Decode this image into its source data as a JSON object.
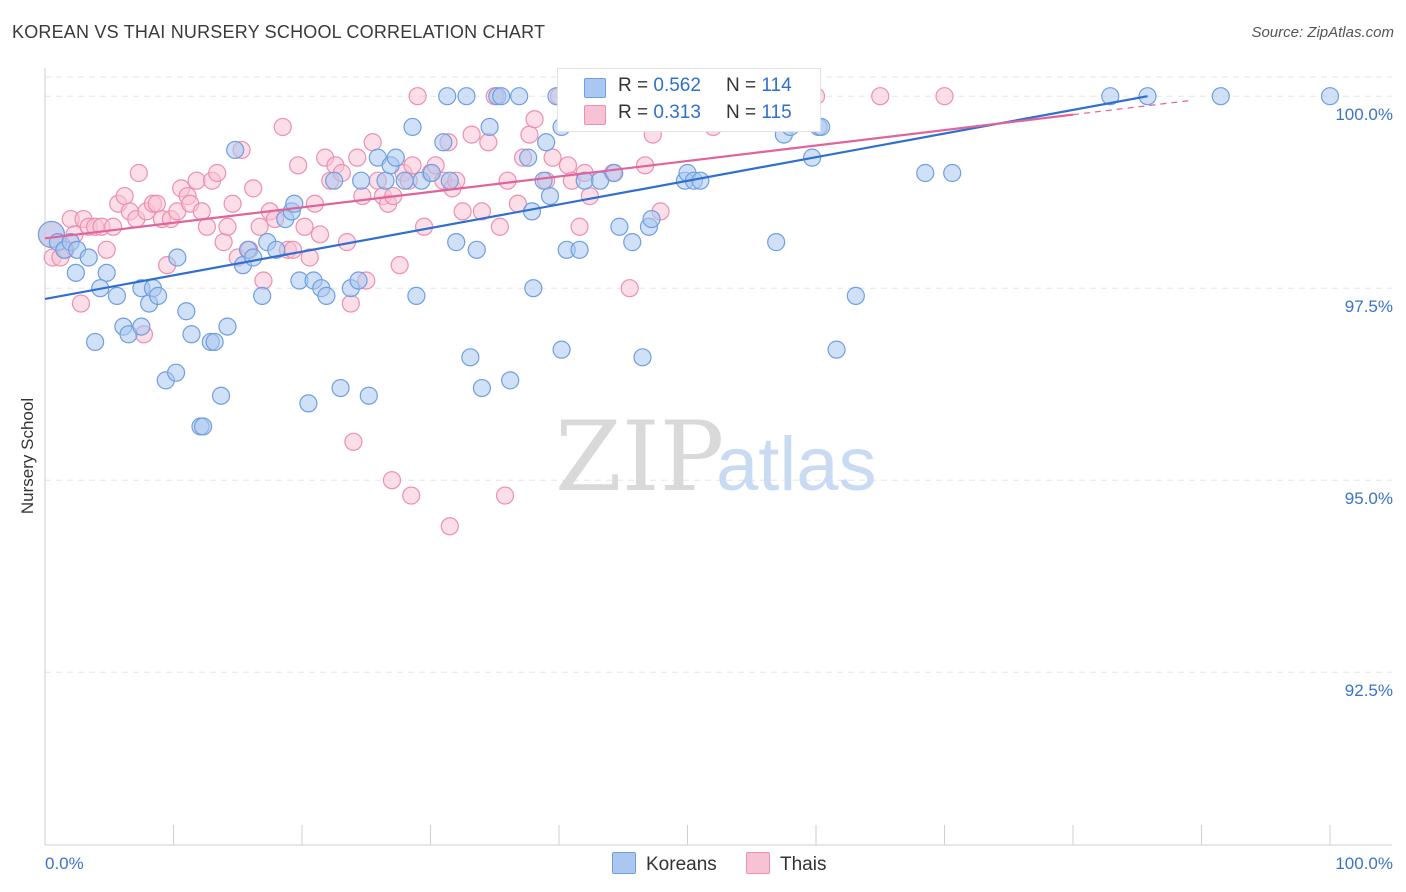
{
  "header": {
    "title": "KOREAN VS THAI NURSERY SCHOOL CORRELATION CHART",
    "source": "Source: ZipAtlas.com"
  },
  "watermark": {
    "zip": "ZIP",
    "atlas": "atlas"
  },
  "legend": {
    "rows": [
      {
        "r_label": "R =",
        "r_value": "0.562",
        "n_label": "N =",
        "n_value": "114",
        "color": "#7aaae6"
      },
      {
        "r_label": "R =",
        "r_value": "0.313",
        "n_label": "N =",
        "n_value": "115",
        "color": "#f4a7c0"
      }
    ]
  },
  "bottom_legend": [
    "Koreans",
    "Thais"
  ],
  "colors": {
    "blue_fill": "#a9c7f0",
    "blue_stroke": "#6f9fe0",
    "blue_line": "#2f6fd0",
    "pink_fill": "#f7c2d3",
    "pink_stroke": "#ee8fb0",
    "pink_line": "#e0649a",
    "tick_text": "#3b73c9"
  },
  "chart_data": {
    "type": "scatter",
    "title": "KOREAN VS THAI NURSERY SCHOOL CORRELATION CHART",
    "xlabel": "",
    "ylabel": "Nursery School",
    "xlim": [
      0,
      100
    ],
    "ylim": [
      90.25,
      100.25
    ],
    "x_tick_labels": [
      "0.0%",
      "100.0%"
    ],
    "y_ticks": [
      92.5,
      95.0,
      97.5,
      100.0
    ],
    "y_tick_labels": [
      "92.5%",
      "95.0%",
      "97.5%",
      "100.0%"
    ],
    "grid": true,
    "series": [
      {
        "name": "Koreans",
        "r": 0.562,
        "n": 114,
        "trend": {
          "x": [
            0,
            85.8
          ],
          "y": [
            97.36,
            100.0
          ]
        },
        "points": [
          [
            0.5,
            98.2
          ],
          [
            1.0,
            98.1
          ],
          [
            1.5,
            98.0
          ],
          [
            2.0,
            98.1
          ],
          [
            2.5,
            98.0
          ],
          [
            3.4,
            97.9
          ],
          [
            2.4,
            97.7
          ],
          [
            4.8,
            97.7
          ],
          [
            4.3,
            97.5
          ],
          [
            5.6,
            97.4
          ],
          [
            6.1,
            97.0
          ],
          [
            3.9,
            96.8
          ],
          [
            6.5,
            96.9
          ],
          [
            7.5,
            97.5
          ],
          [
            7.5,
            97.0
          ],
          [
            8.1,
            97.3
          ],
          [
            8.4,
            97.5
          ],
          [
            8.8,
            97.4
          ],
          [
            9.4,
            96.3
          ],
          [
            10.2,
            96.4
          ],
          [
            10.3,
            97.9
          ],
          [
            11.0,
            97.2
          ],
          [
            11.4,
            96.9
          ],
          [
            12.1,
            95.7
          ],
          [
            12.3,
            95.7
          ],
          [
            12.9,
            96.8
          ],
          [
            13.2,
            96.8
          ],
          [
            13.7,
            96.1
          ],
          [
            14.2,
            97.0
          ],
          [
            14.8,
            99.3
          ],
          [
            15.4,
            97.8
          ],
          [
            15.8,
            98.0
          ],
          [
            16.2,
            97.9
          ],
          [
            16.9,
            97.4
          ],
          [
            17.3,
            98.1
          ],
          [
            18.0,
            98.0
          ],
          [
            18.7,
            98.4
          ],
          [
            19.2,
            98.5
          ],
          [
            19.4,
            98.6
          ],
          [
            19.8,
            97.6
          ],
          [
            20.5,
            96.0
          ],
          [
            20.9,
            97.6
          ],
          [
            21.5,
            97.5
          ],
          [
            21.9,
            97.4
          ],
          [
            22.5,
            98.9
          ],
          [
            23.0,
            96.2
          ],
          [
            23.8,
            97.5
          ],
          [
            24.4,
            97.6
          ],
          [
            24.6,
            98.9
          ],
          [
            25.2,
            96.1
          ],
          [
            25.9,
            99.2
          ],
          [
            26.5,
            98.9
          ],
          [
            26.9,
            99.1
          ],
          [
            27.3,
            99.2
          ],
          [
            28.0,
            98.9
          ],
          [
            28.6,
            99.6
          ],
          [
            28.9,
            97.4
          ],
          [
            29.3,
            98.9
          ],
          [
            30.1,
            99.0
          ],
          [
            31.0,
            99.4
          ],
          [
            31.5,
            98.9
          ],
          [
            32.0,
            98.1
          ],
          [
            31.3,
            100.0
          ],
          [
            32.8,
            100.0
          ],
          [
            33.6,
            98.0
          ],
          [
            33.1,
            96.6
          ],
          [
            34.0,
            96.2
          ],
          [
            34.6,
            99.6
          ],
          [
            35.2,
            100.0
          ],
          [
            35.5,
            100.0
          ],
          [
            36.2,
            96.3
          ],
          [
            36.9,
            100.0
          ],
          [
            37.6,
            99.2
          ],
          [
            37.9,
            98.5
          ],
          [
            38.0,
            97.5
          ],
          [
            38.8,
            98.9
          ],
          [
            39.3,
            98.7
          ],
          [
            39.0,
            99.4
          ],
          [
            39.8,
            100.0
          ],
          [
            40.6,
            98.0
          ],
          [
            40.2,
            99.6
          ],
          [
            40.2,
            96.7
          ],
          [
            41.6,
            98.0
          ],
          [
            42.0,
            98.9
          ],
          [
            43.2,
            98.9
          ],
          [
            44.3,
            99.0
          ],
          [
            44.7,
            98.3
          ],
          [
            45.7,
            98.1
          ],
          [
            46.0,
            100.0
          ],
          [
            46.5,
            96.6
          ],
          [
            47.0,
            98.3
          ],
          [
            47.2,
            98.4
          ],
          [
            48.2,
            100.0
          ],
          [
            49.8,
            98.9
          ],
          [
            50.0,
            99.0
          ],
          [
            50.5,
            98.9
          ],
          [
            51.0,
            98.9
          ],
          [
            52.1,
            100.0
          ],
          [
            54.2,
            100.0
          ],
          [
            56.0,
            100.0
          ],
          [
            56.9,
            98.1
          ],
          [
            57.5,
            99.5
          ],
          [
            58.0,
            99.6
          ],
          [
            59.7,
            99.2
          ],
          [
            60.2,
            99.6
          ],
          [
            60.4,
            99.6
          ],
          [
            61.6,
            96.7
          ],
          [
            63.1,
            97.4
          ],
          [
            68.5,
            99.0
          ],
          [
            70.6,
            99.0
          ],
          [
            82.9,
            100.0
          ],
          [
            85.8,
            100.0
          ],
          [
            91.5,
            100.0
          ],
          [
            100.0,
            100.0
          ]
        ]
      },
      {
        "name": "Thais",
        "r": 0.313,
        "n": 115,
        "trend": {
          "x": [
            0,
            80.0
          ],
          "y": [
            98.15,
            99.76
          ]
        },
        "points": [
          [
            0.5,
            98.2
          ],
          [
            0.6,
            97.9
          ],
          [
            1.2,
            97.9
          ],
          [
            1.6,
            98.0
          ],
          [
            2.0,
            98.4
          ],
          [
            2.3,
            98.2
          ],
          [
            2.8,
            97.3
          ],
          [
            3.0,
            98.4
          ],
          [
            3.4,
            98.3
          ],
          [
            3.9,
            98.3
          ],
          [
            4.4,
            98.3
          ],
          [
            4.8,
            98.0
          ],
          [
            5.3,
            98.3
          ],
          [
            5.7,
            98.6
          ],
          [
            6.2,
            98.7
          ],
          [
            6.6,
            98.5
          ],
          [
            7.1,
            98.4
          ],
          [
            7.3,
            99.0
          ],
          [
            7.7,
            96.9
          ],
          [
            7.9,
            98.5
          ],
          [
            8.4,
            98.6
          ],
          [
            8.7,
            98.6
          ],
          [
            9.1,
            98.4
          ],
          [
            9.5,
            97.8
          ],
          [
            9.8,
            98.4
          ],
          [
            10.3,
            98.5
          ],
          [
            10.6,
            98.8
          ],
          [
            11.1,
            98.7
          ],
          [
            11.3,
            98.6
          ],
          [
            11.8,
            98.9
          ],
          [
            12.2,
            98.5
          ],
          [
            12.6,
            98.3
          ],
          [
            13.0,
            98.9
          ],
          [
            13.4,
            99.0
          ],
          [
            13.9,
            98.1
          ],
          [
            14.2,
            98.3
          ],
          [
            14.6,
            98.6
          ],
          [
            15.0,
            97.9
          ],
          [
            15.3,
            99.3
          ],
          [
            15.9,
            98.0
          ],
          [
            16.2,
            98.8
          ],
          [
            16.7,
            98.3
          ],
          [
            17.0,
            97.6
          ],
          [
            17.5,
            98.5
          ],
          [
            17.9,
            98.4
          ],
          [
            18.5,
            99.6
          ],
          [
            18.9,
            98.0
          ],
          [
            19.3,
            98.0
          ],
          [
            19.7,
            99.1
          ],
          [
            20.2,
            98.3
          ],
          [
            20.6,
            97.9
          ],
          [
            21.0,
            98.6
          ],
          [
            21.4,
            98.2
          ],
          [
            21.8,
            99.2
          ],
          [
            22.2,
            98.9
          ],
          [
            22.6,
            99.1
          ],
          [
            23.1,
            99.0
          ],
          [
            23.5,
            98.1
          ],
          [
            23.8,
            97.3
          ],
          [
            24.3,
            99.2
          ],
          [
            24.7,
            98.7
          ],
          [
            25.0,
            97.6
          ],
          [
            25.5,
            99.4
          ],
          [
            25.9,
            98.9
          ],
          [
            26.3,
            98.7
          ],
          [
            26.7,
            98.6
          ],
          [
            27.1,
            98.7
          ],
          [
            27.6,
            97.8
          ],
          [
            27.9,
            99.0
          ],
          [
            28.3,
            98.9
          ],
          [
            28.6,
            99.1
          ],
          [
            24.0,
            95.5
          ],
          [
            27.0,
            95.0
          ],
          [
            29.0,
            100.0
          ],
          [
            29.5,
            98.3
          ],
          [
            30.0,
            99.0
          ],
          [
            30.4,
            99.1
          ],
          [
            31.0,
            98.9
          ],
          [
            31.4,
            99.4
          ],
          [
            31.7,
            98.8
          ],
          [
            32.0,
            98.9
          ],
          [
            32.5,
            98.5
          ],
          [
            33.2,
            99.5
          ],
          [
            34.0,
            98.5
          ],
          [
            34.5,
            99.4
          ],
          [
            35.0,
            100.0
          ],
          [
            35.4,
            98.3
          ],
          [
            36.0,
            98.9
          ],
          [
            36.8,
            98.6
          ],
          [
            37.2,
            99.2
          ],
          [
            37.7,
            99.5
          ],
          [
            38.1,
            99.7
          ],
          [
            39.0,
            98.9
          ],
          [
            39.5,
            99.2
          ],
          [
            40.0,
            100.0
          ],
          [
            40.7,
            99.1
          ],
          [
            41.0,
            98.9
          ],
          [
            41.6,
            98.3
          ],
          [
            42.0,
            99.0
          ],
          [
            42.4,
            98.7
          ],
          [
            44.2,
            99.0
          ],
          [
            45.5,
            97.5
          ],
          [
            46.7,
            99.1
          ],
          [
            47.3,
            99.5
          ],
          [
            47.9,
            98.5
          ],
          [
            48.6,
            100.0
          ],
          [
            50.0,
            100.0
          ],
          [
            52.0,
            99.6
          ],
          [
            54.0,
            100.0
          ],
          [
            56.5,
            100.0
          ],
          [
            58.5,
            100.0
          ],
          [
            60.0,
            100.0
          ],
          [
            65.0,
            100.0
          ],
          [
            70.0,
            100.0
          ],
          [
            28.5,
            94.8
          ],
          [
            31.5,
            94.4
          ],
          [
            35.8,
            94.8
          ]
        ]
      }
    ]
  }
}
